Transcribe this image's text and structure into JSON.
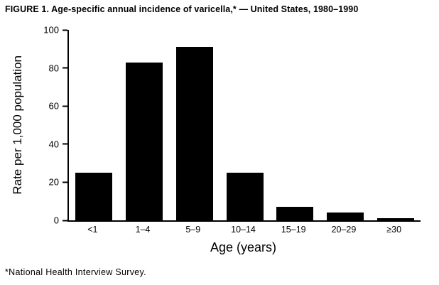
{
  "figure": {
    "title": "FIGURE 1. Age-specific annual incidence of varicella,* — United States, 1980–1990",
    "footnote": "*National Health Interview Survey."
  },
  "chart_data": {
    "type": "bar",
    "title": "FIGURE 1. Age-specific annual incidence of varicella,* — United States, 1980–1990",
    "categories": [
      "<1",
      "1–4",
      "5–9",
      "10–14",
      "15–19",
      "20–29",
      "≥30"
    ],
    "values": [
      25,
      83,
      91,
      25,
      7,
      4,
      1
    ],
    "xlabel": "Age (years)",
    "ylabel": "Rate per 1,000 population",
    "ylim": [
      0,
      100
    ],
    "yticks": [
      0,
      20,
      40,
      60,
      80,
      100
    ],
    "bar_color": "#000000",
    "grid": false,
    "legend": null,
    "footnote": "*National Health Interview Survey."
  }
}
